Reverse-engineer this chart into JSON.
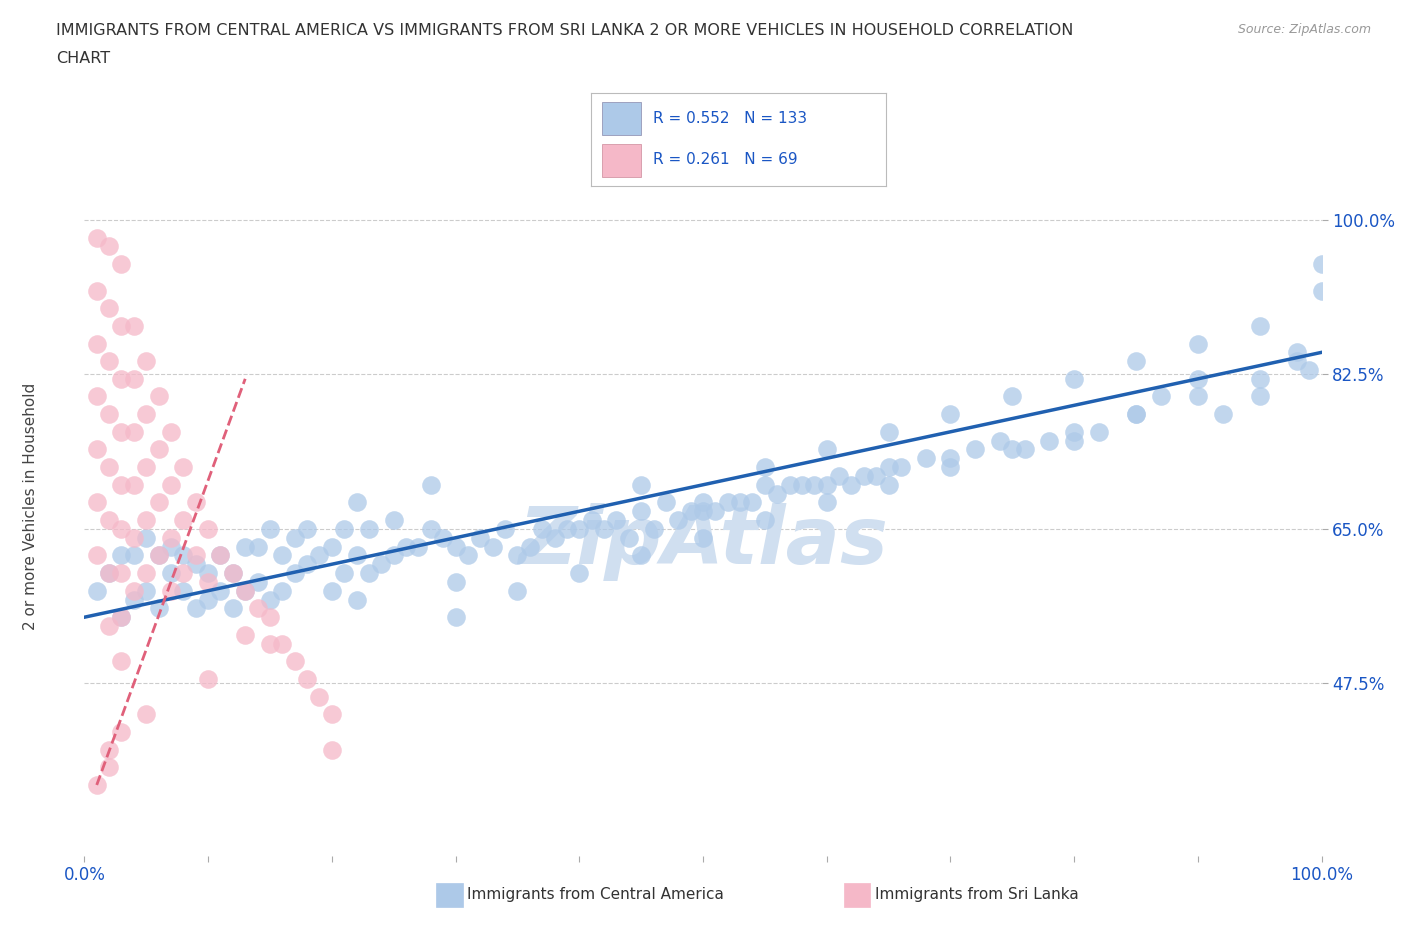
{
  "title_line1": "IMMIGRANTS FROM CENTRAL AMERICA VS IMMIGRANTS FROM SRI LANKA 2 OR MORE VEHICLES IN HOUSEHOLD CORRELATION",
  "title_line2": "CHART",
  "source": "Source: ZipAtlas.com",
  "ylabel": "2 or more Vehicles in Household",
  "xlim": [
    0,
    100
  ],
  "ylim": [
    28,
    107
  ],
  "y_ticks": [
    47.5,
    65.0,
    82.5,
    100.0
  ],
  "y_tick_labels": [
    "47.5%",
    "65.0%",
    "82.5%",
    "100.0%"
  ],
  "blue_color": "#adc9e8",
  "pink_color": "#f5b8c8",
  "blue_line_color": "#2060b0",
  "pink_line_color": "#e0607a",
  "blue_R": 0.552,
  "blue_N": 133,
  "pink_R": 0.261,
  "pink_N": 69,
  "legend_R_color": "#1a56c4",
  "watermark_text": "ZipAtlas",
  "watermark_color": "#d0dff0",
  "background_color": "#ffffff",
  "blue_scatter_x": [
    1,
    2,
    3,
    3,
    4,
    4,
    5,
    5,
    6,
    6,
    7,
    7,
    8,
    8,
    9,
    9,
    10,
    10,
    11,
    11,
    12,
    12,
    13,
    13,
    14,
    14,
    15,
    15,
    16,
    16,
    17,
    17,
    18,
    18,
    19,
    20,
    20,
    21,
    21,
    22,
    22,
    23,
    23,
    24,
    25,
    25,
    26,
    27,
    28,
    29,
    30,
    30,
    31,
    32,
    33,
    34,
    35,
    36,
    37,
    38,
    39,
    40,
    41,
    42,
    43,
    44,
    45,
    46,
    47,
    48,
    49,
    50,
    51,
    52,
    53,
    54,
    55,
    56,
    57,
    58,
    59,
    60,
    61,
    62,
    63,
    64,
    65,
    66,
    68,
    70,
    72,
    74,
    76,
    78,
    80,
    82,
    85,
    87,
    90,
    92,
    95,
    98,
    99,
    100,
    45,
    50,
    55,
    60,
    65,
    70,
    75,
    80,
    85,
    90,
    95,
    100,
    30,
    35,
    40,
    45,
    50,
    55,
    60,
    65,
    70,
    75,
    80,
    85,
    90,
    95,
    98,
    22,
    28
  ],
  "blue_scatter_y": [
    58,
    60,
    62,
    55,
    62,
    57,
    58,
    64,
    56,
    62,
    60,
    63,
    58,
    62,
    56,
    61,
    57,
    60,
    58,
    62,
    56,
    60,
    58,
    63,
    59,
    63,
    57,
    65,
    58,
    62,
    60,
    64,
    61,
    65,
    62,
    58,
    63,
    60,
    65,
    57,
    62,
    60,
    65,
    61,
    62,
    66,
    63,
    63,
    65,
    64,
    59,
    63,
    62,
    64,
    63,
    65,
    62,
    63,
    65,
    64,
    65,
    65,
    66,
    65,
    66,
    64,
    67,
    65,
    68,
    66,
    67,
    67,
    67,
    68,
    68,
    68,
    70,
    69,
    70,
    70,
    70,
    70,
    71,
    70,
    71,
    71,
    72,
    72,
    73,
    73,
    74,
    75,
    74,
    75,
    75,
    76,
    78,
    80,
    82,
    78,
    80,
    85,
    83,
    95,
    70,
    68,
    72,
    74,
    76,
    78,
    80,
    82,
    84,
    86,
    88,
    92,
    55,
    58,
    60,
    62,
    64,
    66,
    68,
    70,
    72,
    74,
    76,
    78,
    80,
    82,
    84,
    68,
    70
  ],
  "pink_scatter_x": [
    1,
    1,
    1,
    1,
    1,
    1,
    1,
    2,
    2,
    2,
    2,
    2,
    2,
    2,
    2,
    3,
    3,
    3,
    3,
    3,
    3,
    3,
    3,
    3,
    4,
    4,
    4,
    4,
    4,
    4,
    5,
    5,
    5,
    5,
    5,
    6,
    6,
    6,
    6,
    7,
    7,
    7,
    7,
    8,
    8,
    8,
    9,
    9,
    10,
    10,
    11,
    12,
    13,
    13,
    14,
    15,
    16,
    17,
    18,
    19,
    20,
    20,
    15,
    10,
    5,
    3,
    2,
    2,
    1
  ],
  "pink_scatter_y": [
    98,
    92,
    86,
    80,
    74,
    68,
    62,
    97,
    90,
    84,
    78,
    72,
    66,
    60,
    54,
    95,
    88,
    82,
    76,
    70,
    65,
    60,
    55,
    50,
    88,
    82,
    76,
    70,
    64,
    58,
    84,
    78,
    72,
    66,
    60,
    80,
    74,
    68,
    62,
    76,
    70,
    64,
    58,
    72,
    66,
    60,
    68,
    62,
    65,
    59,
    62,
    60,
    58,
    53,
    56,
    55,
    52,
    50,
    48,
    46,
    44,
    40,
    52,
    48,
    44,
    42,
    40,
    38,
    36
  ],
  "blue_trend_x0": 0,
  "blue_trend_y0": 55.0,
  "blue_trend_x1": 100,
  "blue_trend_y1": 85.0,
  "pink_trend_x0": 1,
  "pink_trend_y0": 36,
  "pink_trend_x1": 13,
  "pink_trend_y1": 82
}
